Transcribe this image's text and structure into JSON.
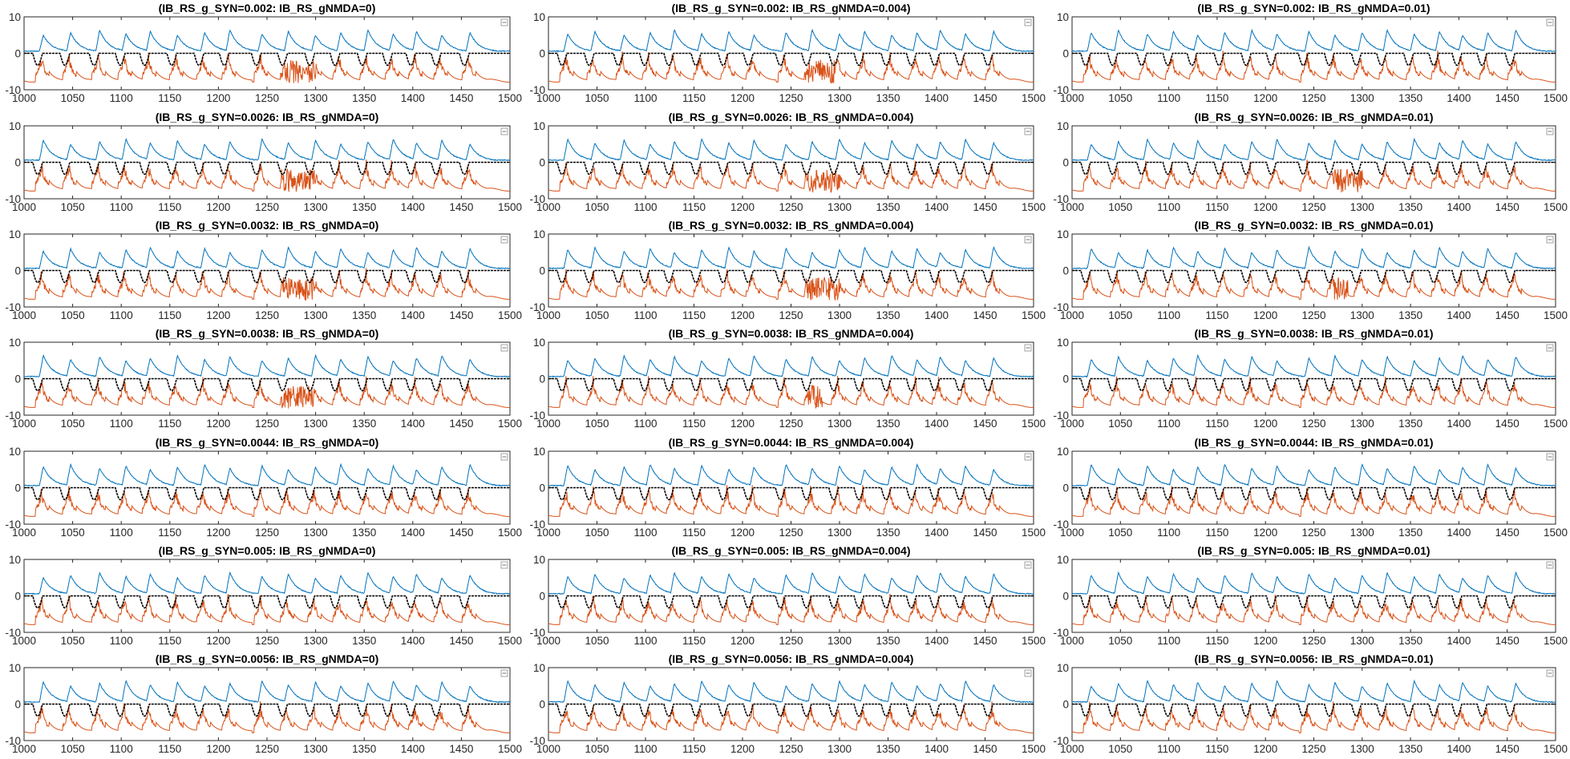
{
  "chart_data": {
    "type": "line",
    "layout": "7x3 grid of small multiples",
    "xlim": [
      1000,
      1500
    ],
    "ylim": [
      -10,
      10
    ],
    "xticks": [
      1000,
      1050,
      1100,
      1150,
      1200,
      1250,
      1300,
      1350,
      1400,
      1450,
      1500
    ],
    "yticks": [
      -10,
      0,
      10
    ],
    "grid": false,
    "legend": "top-right (collapsed, empty)",
    "series_colors": {
      "blue_trace": "#0072BD",
      "orange_trace": "#D95319",
      "black_trace": "#000000"
    },
    "blue_trace_description": "sawtooth-like peaks near y=4..6 decaying toward 0",
    "black_trace_description": "baseline at y=0 with periodic dips to about y=-3",
    "orange_trace_description": "fast spiking activity between about y=-8 and y=-1",
    "burst_onset_times": [
      1018,
      1046,
      1076,
      1103,
      1128,
      1156,
      1184,
      1210,
      1243,
      1270,
      1298,
      1324,
      1352,
      1378,
      1402,
      1428,
      1457
    ],
    "rows_gSYN": [
      "0.002",
      "0.0026",
      "0.0032",
      "0.0038",
      "0.0044",
      "0.005",
      "0.0056"
    ],
    "cols_gNMDA": [
      "0",
      "0.004",
      "0.01"
    ],
    "panels": [
      {
        "title": "(IB_RS_g_SYN=0.002: IB_RS_gNMDA=0)",
        "row": 0,
        "col": 0,
        "tonic_burst": [
          1265,
          1300
        ]
      },
      {
        "title": "(IB_RS_g_SYN=0.002: IB_RS_gNMDA=0.004)",
        "row": 0,
        "col": 1,
        "tonic_burst": [
          1265,
          1295
        ]
      },
      {
        "title": "(IB_RS_g_SYN=0.002: IB_RS_gNMDA=0.01)",
        "row": 0,
        "col": 2,
        "tonic_burst": null
      },
      {
        "title": "(IB_RS_g_SYN=0.0026: IB_RS_gNMDA=0)",
        "row": 1,
        "col": 0,
        "tonic_burst": [
          1265,
          1300
        ]
      },
      {
        "title": "(IB_RS_g_SYN=0.0026: IB_RS_gNMDA=0.004)",
        "row": 1,
        "col": 1,
        "tonic_burst": [
          1265,
          1300
        ]
      },
      {
        "title": "(IB_RS_g_SYN=0.0026: IB_RS_gNMDA=0.01)",
        "row": 1,
        "col": 2,
        "tonic_burst": [
          1270,
          1300
        ]
      },
      {
        "title": "(IB_RS_g_SYN=0.0032: IB_RS_gNMDA=0)",
        "row": 2,
        "col": 0,
        "tonic_burst": [
          1265,
          1300
        ]
      },
      {
        "title": "(IB_RS_g_SYN=0.0032: IB_RS_gNMDA=0.004)",
        "row": 2,
        "col": 1,
        "tonic_burst": [
          1265,
          1300
        ]
      },
      {
        "title": "(IB_RS_g_SYN=0.0032: IB_RS_gNMDA=0.01)",
        "row": 2,
        "col": 2,
        "tonic_burst": [
          1270,
          1285
        ]
      },
      {
        "title": "(IB_RS_g_SYN=0.0038: IB_RS_gNMDA=0)",
        "row": 3,
        "col": 0,
        "tonic_burst": [
          1265,
          1300
        ]
      },
      {
        "title": "(IB_RS_g_SYN=0.0038: IB_RS_gNMDA=0.004)",
        "row": 3,
        "col": 1,
        "tonic_burst": [
          1268,
          1282
        ]
      },
      {
        "title": "(IB_RS_g_SYN=0.0038: IB_RS_gNMDA=0.01)",
        "row": 3,
        "col": 2,
        "tonic_burst": null
      },
      {
        "title": "(IB_RS_g_SYN=0.0044: IB_RS_gNMDA=0)",
        "row": 4,
        "col": 0,
        "tonic_burst": null
      },
      {
        "title": "(IB_RS_g_SYN=0.0044: IB_RS_gNMDA=0.004)",
        "row": 4,
        "col": 1,
        "tonic_burst": null
      },
      {
        "title": "(IB_RS_g_SYN=0.0044: IB_RS_gNMDA=0.01)",
        "row": 4,
        "col": 2,
        "tonic_burst": null
      },
      {
        "title": "(IB_RS_g_SYN=0.005: IB_RS_gNMDA=0)",
        "row": 5,
        "col": 0,
        "tonic_burst": null
      },
      {
        "title": "(IB_RS_g_SYN=0.005: IB_RS_gNMDA=0.004)",
        "row": 5,
        "col": 1,
        "tonic_burst": null
      },
      {
        "title": "(IB_RS_g_SYN=0.005: IB_RS_gNMDA=0.01)",
        "row": 5,
        "col": 2,
        "tonic_burst": null
      },
      {
        "title": "(IB_RS_g_SYN=0.0056: IB_RS_gNMDA=0)",
        "row": 6,
        "col": 0,
        "tonic_burst": null
      },
      {
        "title": "(IB_RS_g_SYN=0.0056: IB_RS_gNMDA=0.004)",
        "row": 6,
        "col": 1,
        "tonic_burst": null
      },
      {
        "title": "(IB_RS_g_SYN=0.0056: IB_RS_gNMDA=0.01)",
        "row": 6,
        "col": 2,
        "tonic_burst": null
      }
    ]
  }
}
